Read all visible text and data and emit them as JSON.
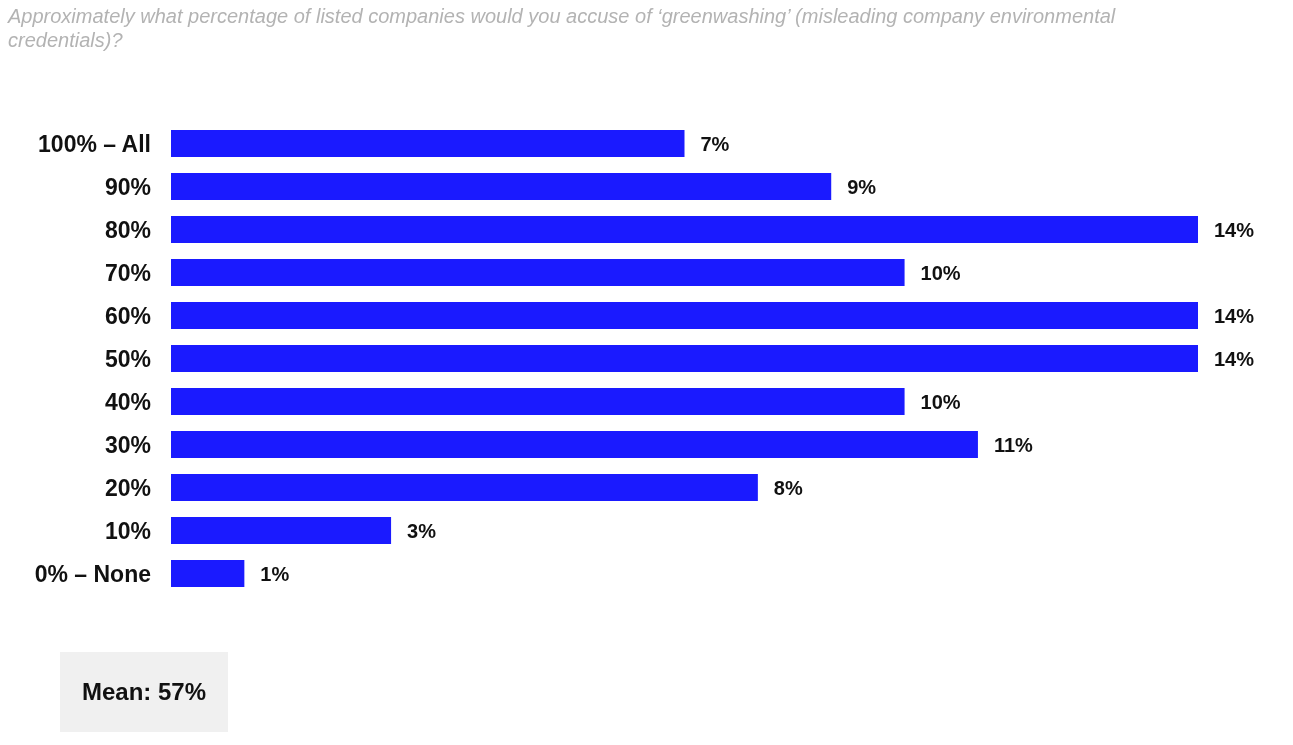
{
  "chart_data": {
    "type": "bar",
    "orientation": "horizontal",
    "title": "Approximately what percentage of listed companies would you accuse of ‘greenwashing’ (misleading company environmental credentials)?",
    "categories": [
      "100% – All",
      "90%",
      "80%",
      "70%",
      "60%",
      "50%",
      "40%",
      "30%",
      "20%",
      "10%",
      "0% – None"
    ],
    "values": [
      7,
      9,
      14,
      10,
      14,
      14,
      10,
      11,
      8,
      3,
      1
    ],
    "value_labels": [
      "7%",
      "9%",
      "14%",
      "10%",
      "14%",
      "14%",
      "10%",
      "11%",
      "8%",
      "3%",
      "1%"
    ],
    "color": "#1a1aff",
    "annotations": [
      "Mean: 57%"
    ]
  }
}
